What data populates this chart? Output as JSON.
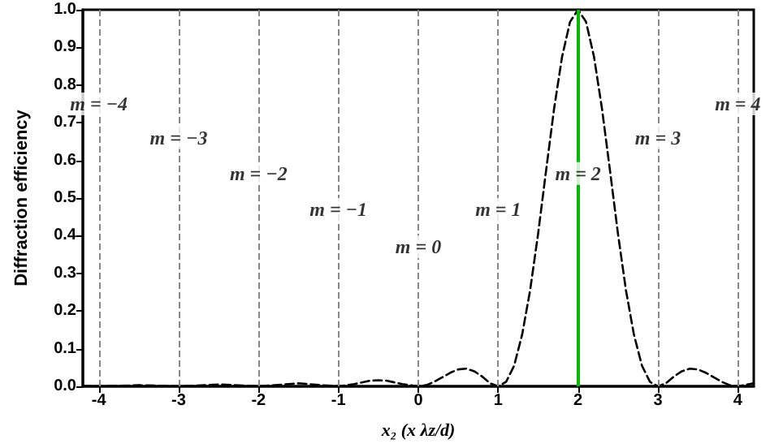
{
  "chart_data": {
    "type": "line",
    "xlabel": "x₂ (x λz/d)",
    "ylabel": "Diffraction efficiency",
    "xlim": [
      -4.2,
      4.2
    ],
    "xticks": [
      -4,
      -3,
      -2,
      -1,
      0,
      1,
      2,
      3,
      4
    ],
    "ylim": [
      0,
      1
    ],
    "yticks": [
      {
        "value": 0,
        "label": "0.0"
      },
      0.1,
      0.2,
      0.3,
      0.4,
      0.5,
      0.6,
      0.7,
      0.8,
      0.9,
      {
        "value": 1,
        "label": "1.0"
      }
    ],
    "grid": false,
    "marker": "none",
    "series": [
      {
        "color": "#000000",
        "line_style": "dashed",
        "x": [
          -4.2,
          -4,
          -3.5,
          -3,
          -2.8,
          -2.5,
          -2.2,
          -2,
          -1.8,
          -1.5,
          -1.2,
          -1,
          -0.8,
          -0.6,
          -0.5,
          -0.4,
          -0.2,
          0,
          0.1,
          0.2,
          0.3,
          0.4,
          0.5,
          0.6,
          0.7,
          0.8,
          0.9,
          1,
          1.1,
          1.2,
          1.3,
          1.4,
          1.5,
          1.6,
          1.7,
          1.8,
          1.9,
          2,
          2.1,
          2.2,
          2.3,
          2.4,
          2.5,
          2.6,
          2.7,
          2.8,
          2.9,
          3,
          3.1,
          3.2,
          3.3,
          3.4,
          3.5,
          3.6,
          3.7,
          3.8,
          3.9,
          4,
          4.2
        ],
        "values": [
          0.001,
          0,
          0.003,
          0,
          0.002,
          0.005,
          0.002,
          0,
          0.003,
          0.008,
          0.003,
          0,
          0.006,
          0.015,
          0.016,
          0.015,
          0.006,
          0,
          0.003,
          0.012,
          0.024,
          0.036,
          0.045,
          0.047,
          0.04,
          0.026,
          0.008,
          0,
          0.012,
          0.055,
          0.137,
          0.255,
          0.405,
          0.573,
          0.737,
          0.875,
          0.968,
          1,
          0.968,
          0.875,
          0.737,
          0.573,
          0.405,
          0.255,
          0.137,
          0.055,
          0.012,
          0,
          0.008,
          0.026,
          0.04,
          0.047,
          0.045,
          0.036,
          0.024,
          0.012,
          0.003,
          0,
          0.008
        ]
      }
    ],
    "ref_lines": [
      {
        "axis": "x",
        "value": -4,
        "color": "#888888",
        "line_style": "dashed"
      },
      {
        "axis": "x",
        "value": -3,
        "color": "#888888",
        "line_style": "dashed"
      },
      {
        "axis": "x",
        "value": -2,
        "color": "#888888",
        "line_style": "dashed"
      },
      {
        "axis": "x",
        "value": -1,
        "color": "#888888",
        "line_style": "dashed"
      },
      {
        "axis": "x",
        "value": 0,
        "color": "#888888",
        "line_style": "dashed"
      },
      {
        "axis": "x",
        "value": 1,
        "color": "#888888",
        "line_style": "dashed"
      },
      {
        "axis": "x",
        "value": 3,
        "color": "#888888",
        "line_style": "dashed"
      },
      {
        "axis": "x",
        "value": 4,
        "color": "#888888",
        "line_style": "dashed"
      },
      {
        "axis": "x",
        "value": 2,
        "color": "#00bb00",
        "line_style": "solid"
      }
    ],
    "annotations": [
      {
        "text": "m = −4",
        "x": -4,
        "y": 0.75
      },
      {
        "text": "m = −3",
        "x": -3,
        "y": 0.66
      },
      {
        "text": "m = −2",
        "x": -2,
        "y": 0.565
      },
      {
        "text": "m = −1",
        "x": -1,
        "y": 0.47
      },
      {
        "text": "m = 0",
        "x": 0,
        "y": 0.37
      },
      {
        "text": "m = 1",
        "x": 1,
        "y": 0.47
      },
      {
        "text": "m = 2",
        "x": 2,
        "y": 0.565
      },
      {
        "text": "m = 3",
        "x": 3,
        "y": 0.66
      },
      {
        "text": "m = 4",
        "x": 4,
        "y": 0.75
      }
    ]
  }
}
